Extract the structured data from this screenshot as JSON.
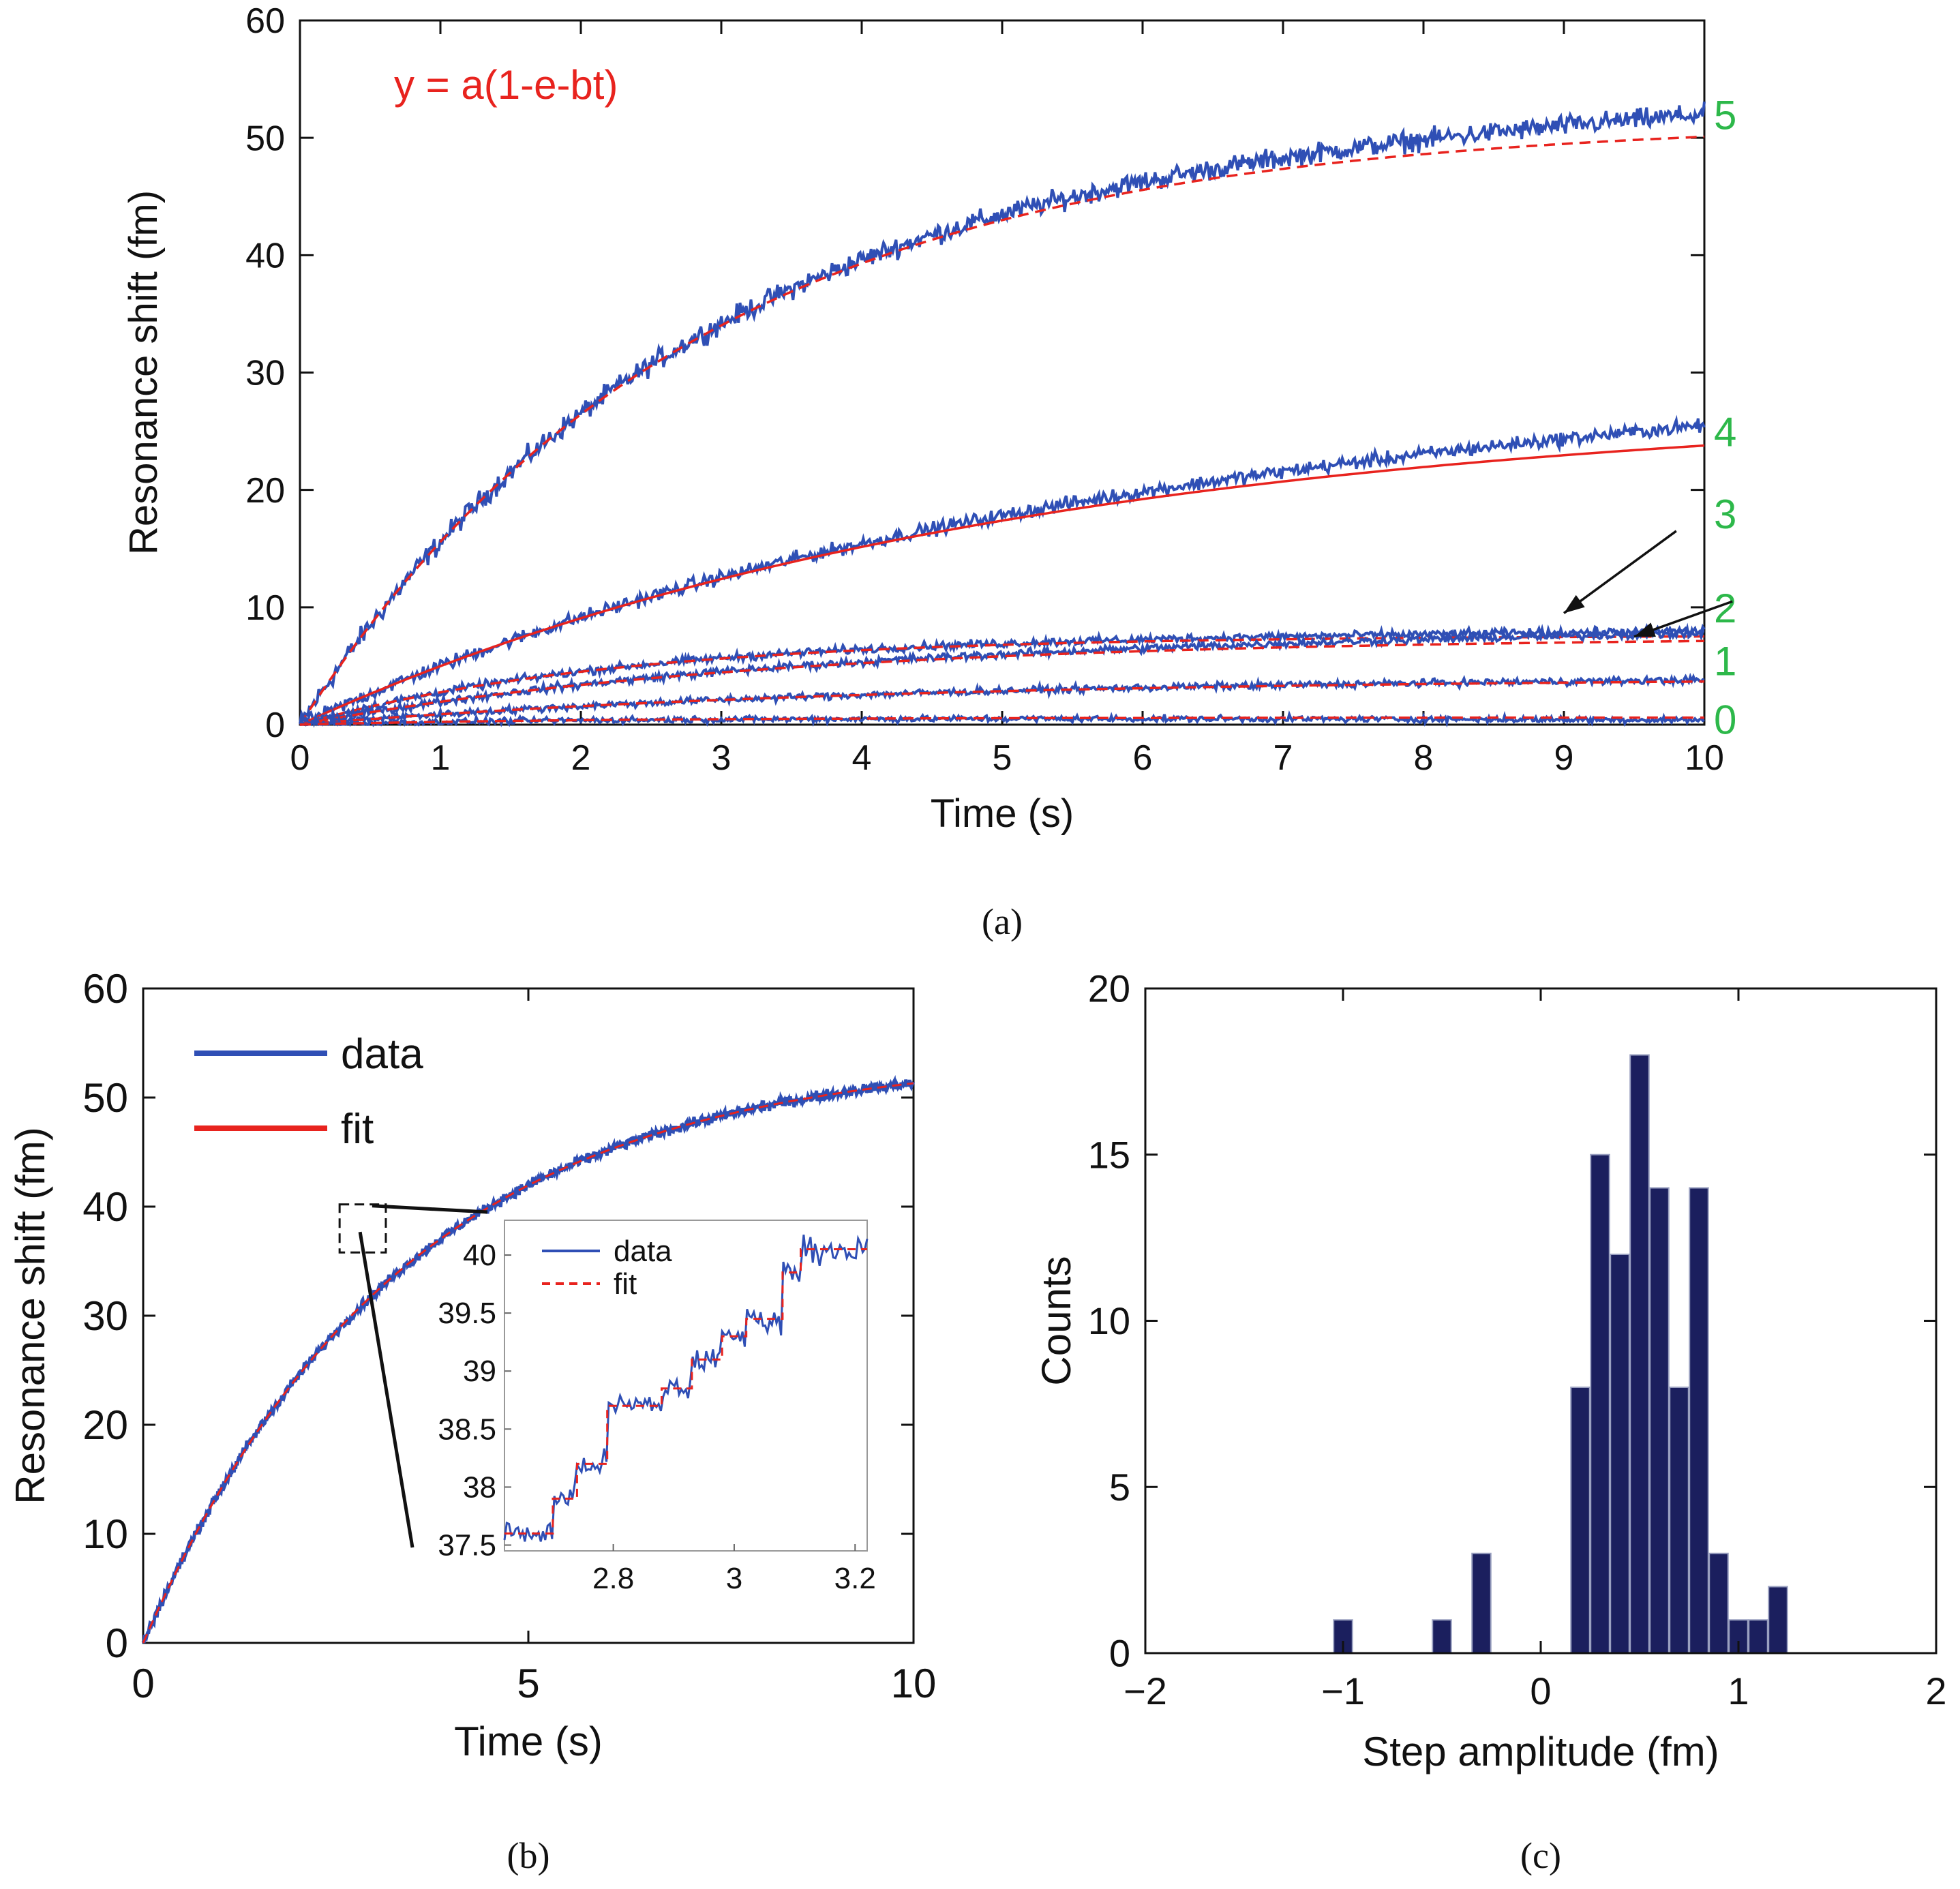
{
  "colors": {
    "data_line": "#2f4fb5",
    "fit_line": "#e8231e",
    "trace_label": "#2db84a",
    "hist_bar": "#1b1f5e",
    "axis": "#111111"
  },
  "chart_data": [
    {
      "id": "a",
      "type": "line",
      "caption": "(a)",
      "xlabel": "Time (s)",
      "ylabel": "Resonance shift (fm)",
      "xlim": [
        0,
        10
      ],
      "ylim": [
        0,
        60
      ],
      "xticks": [
        0,
        1,
        2,
        3,
        4,
        5,
        6,
        7,
        8,
        9,
        10
      ],
      "yticks": [
        0,
        10,
        20,
        30,
        40,
        50,
        60
      ],
      "formula": "y = a(1-e-bt)",
      "fit_model": "a*(1-exp(-b*t))",
      "traces": [
        {
          "label": "5",
          "label_y": 52,
          "fit_style": "dashed",
          "fit": {
            "a": 51.5,
            "b": 0.36
          },
          "data_end": 52
        },
        {
          "label": "4",
          "label_y": 25,
          "fit_style": "solid",
          "fit": {
            "a": 27.5,
            "b": 0.2
          },
          "data_end": 25.5
        },
        {
          "label": "3",
          "label_y": 18,
          "fit_style": "dashed",
          "fit": {
            "a": 7.6,
            "b": 0.45
          },
          "data_end": 8
        },
        {
          "label": "2",
          "label_y": 10,
          "fit_style": "dashed",
          "fit": {
            "a": 7.5,
            "b": 0.3
          },
          "data_end": 7.8
        },
        {
          "label": "1",
          "label_y": 5.5,
          "fit_style": "dashed",
          "fit": {
            "a": 4.0,
            "b": 0.25
          },
          "data_end": 3.8
        },
        {
          "label": "0",
          "label_y": 0.5,
          "fit_style": "dashed",
          "fit": {
            "a": 0.6,
            "b": 0.5
          },
          "data_end": 0.4
        }
      ],
      "arrows": [
        {
          "from": [
            9.8,
            16.5
          ],
          "to": [
            9.0,
            9.5
          ]
        },
        {
          "from": [
            10.2,
            10.5
          ],
          "to": [
            9.5,
            7.5
          ]
        }
      ]
    },
    {
      "id": "b",
      "type": "line",
      "caption": "(b)",
      "xlabel": "Time (s)",
      "ylabel": "Resonance shift (fm)",
      "xlim": [
        0,
        10
      ],
      "ylim": [
        0,
        60
      ],
      "xticks": [
        0,
        5,
        10
      ],
      "yticks": [
        0,
        10,
        20,
        30,
        40,
        50,
        60
      ],
      "legend": [
        "data",
        "fit"
      ],
      "legend_position": "top-left",
      "fit": {
        "a": 54,
        "b": 0.3
      },
      "inset": {
        "xlim": [
          2.62,
          3.22
        ],
        "ylim": [
          37.45,
          40.3
        ],
        "xticks": [
          2.8,
          3,
          3.2
        ],
        "yticks": [
          37.5,
          38,
          38.5,
          39,
          39.5,
          40
        ],
        "ytick_labels": [
          "37.5",
          "38",
          "38.5",
          "39",
          "39.5",
          "40"
        ],
        "legend": [
          "data",
          "fit"
        ],
        "steps": [
          {
            "x0": 2.62,
            "x1": 2.7,
            "y": 37.6
          },
          {
            "x0": 2.7,
            "x1": 2.74,
            "y": 37.9
          },
          {
            "x0": 2.74,
            "x1": 2.79,
            "y": 38.2
          },
          {
            "x0": 2.79,
            "x1": 2.88,
            "y": 38.7
          },
          {
            "x0": 2.88,
            "x1": 2.93,
            "y": 38.85
          },
          {
            "x0": 2.93,
            "x1": 2.98,
            "y": 39.1
          },
          {
            "x0": 2.98,
            "x1": 3.02,
            "y": 39.3
          },
          {
            "x0": 3.02,
            "x1": 3.08,
            "y": 39.45
          },
          {
            "x0": 3.08,
            "x1": 3.11,
            "y": 39.85
          },
          {
            "x0": 3.11,
            "x1": 3.22,
            "y": 40.05
          }
        ]
      }
    },
    {
      "id": "c",
      "type": "bar",
      "caption": "(c)",
      "xlabel": "Step amplitude (fm)",
      "ylabel": "Counts",
      "xlim": [
        -2,
        2
      ],
      "ylim": [
        0,
        20
      ],
      "xticks": [
        -2,
        -1,
        0,
        1,
        2
      ],
      "xtick_labels": [
        "−2",
        "−1",
        "0",
        "1",
        "2"
      ],
      "yticks": [
        0,
        5,
        10,
        15,
        20
      ],
      "bin_width": 0.095,
      "bins": [
        {
          "x": -1.0,
          "count": 1
        },
        {
          "x": -0.5,
          "count": 1
        },
        {
          "x": -0.3,
          "count": 3
        },
        {
          "x": 0.2,
          "count": 8
        },
        {
          "x": 0.3,
          "count": 15
        },
        {
          "x": 0.4,
          "count": 12
        },
        {
          "x": 0.5,
          "count": 18
        },
        {
          "x": 0.6,
          "count": 14
        },
        {
          "x": 0.7,
          "count": 8
        },
        {
          "x": 0.8,
          "count": 14
        },
        {
          "x": 0.9,
          "count": 3
        },
        {
          "x": 1.0,
          "count": 1
        },
        {
          "x": 1.1,
          "count": 1
        },
        {
          "x": 1.2,
          "count": 2
        }
      ]
    }
  ]
}
